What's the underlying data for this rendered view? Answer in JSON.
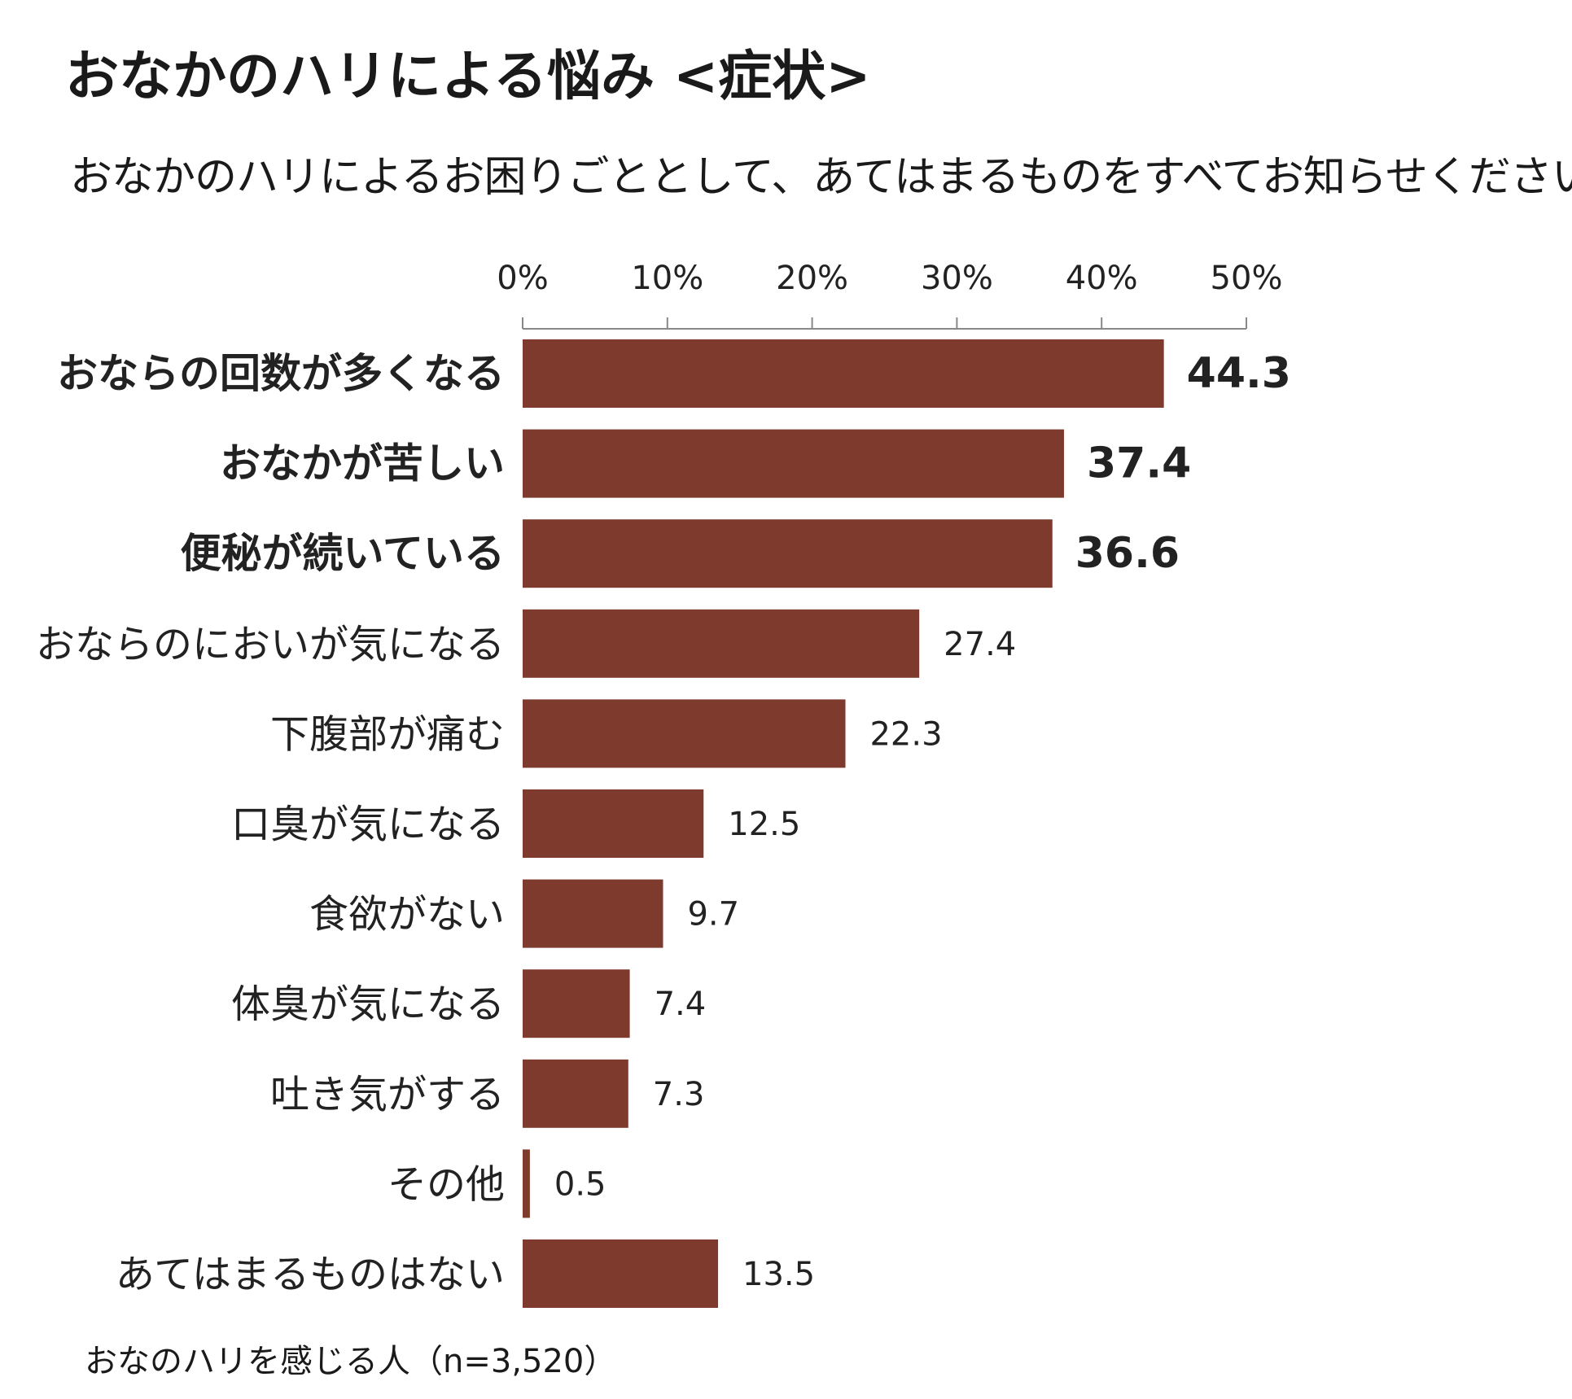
{
  "title": "おなかのハリによる悩み <症状>",
  "subtitle": "おなかのハリによるお困りごととして、あてはまるものをすべてお知らせください。",
  "footnote": "おなのハリを感じる人（n=3,520）",
  "colors": {
    "bar": "#7d3a2d",
    "axis": "#888888",
    "text": "#222222"
  },
  "chart_data": {
    "type": "bar",
    "orientation": "horizontal",
    "xlim": [
      0,
      50
    ],
    "x_ticks": [
      "0%",
      "10%",
      "20%",
      "30%",
      "40%",
      "50%"
    ],
    "x_tick_values": [
      0,
      10,
      20,
      30,
      40,
      50
    ],
    "axis_position": "top",
    "grid": false,
    "categories": [
      "おならの回数が多くなる",
      "おなかが苦しい",
      "便秘が続いている",
      "おならのにおいが気になる",
      "下腹部が痛む",
      "口臭が気になる",
      "食欲がない",
      "体臭が気になる",
      "吐き気がする",
      "その他",
      "あてはまるものはない"
    ],
    "values": [
      44.3,
      37.4,
      36.6,
      27.4,
      22.3,
      12.5,
      9.7,
      7.4,
      7.3,
      0.5,
      13.5
    ],
    "value_labels": [
      "44.3",
      "37.4",
      "36.6",
      "27.4",
      "22.3",
      "12.5",
      "9.7",
      "7.4",
      "7.3",
      "0.5",
      "13.5"
    ],
    "bold_categories": [
      0,
      1,
      2
    ]
  }
}
